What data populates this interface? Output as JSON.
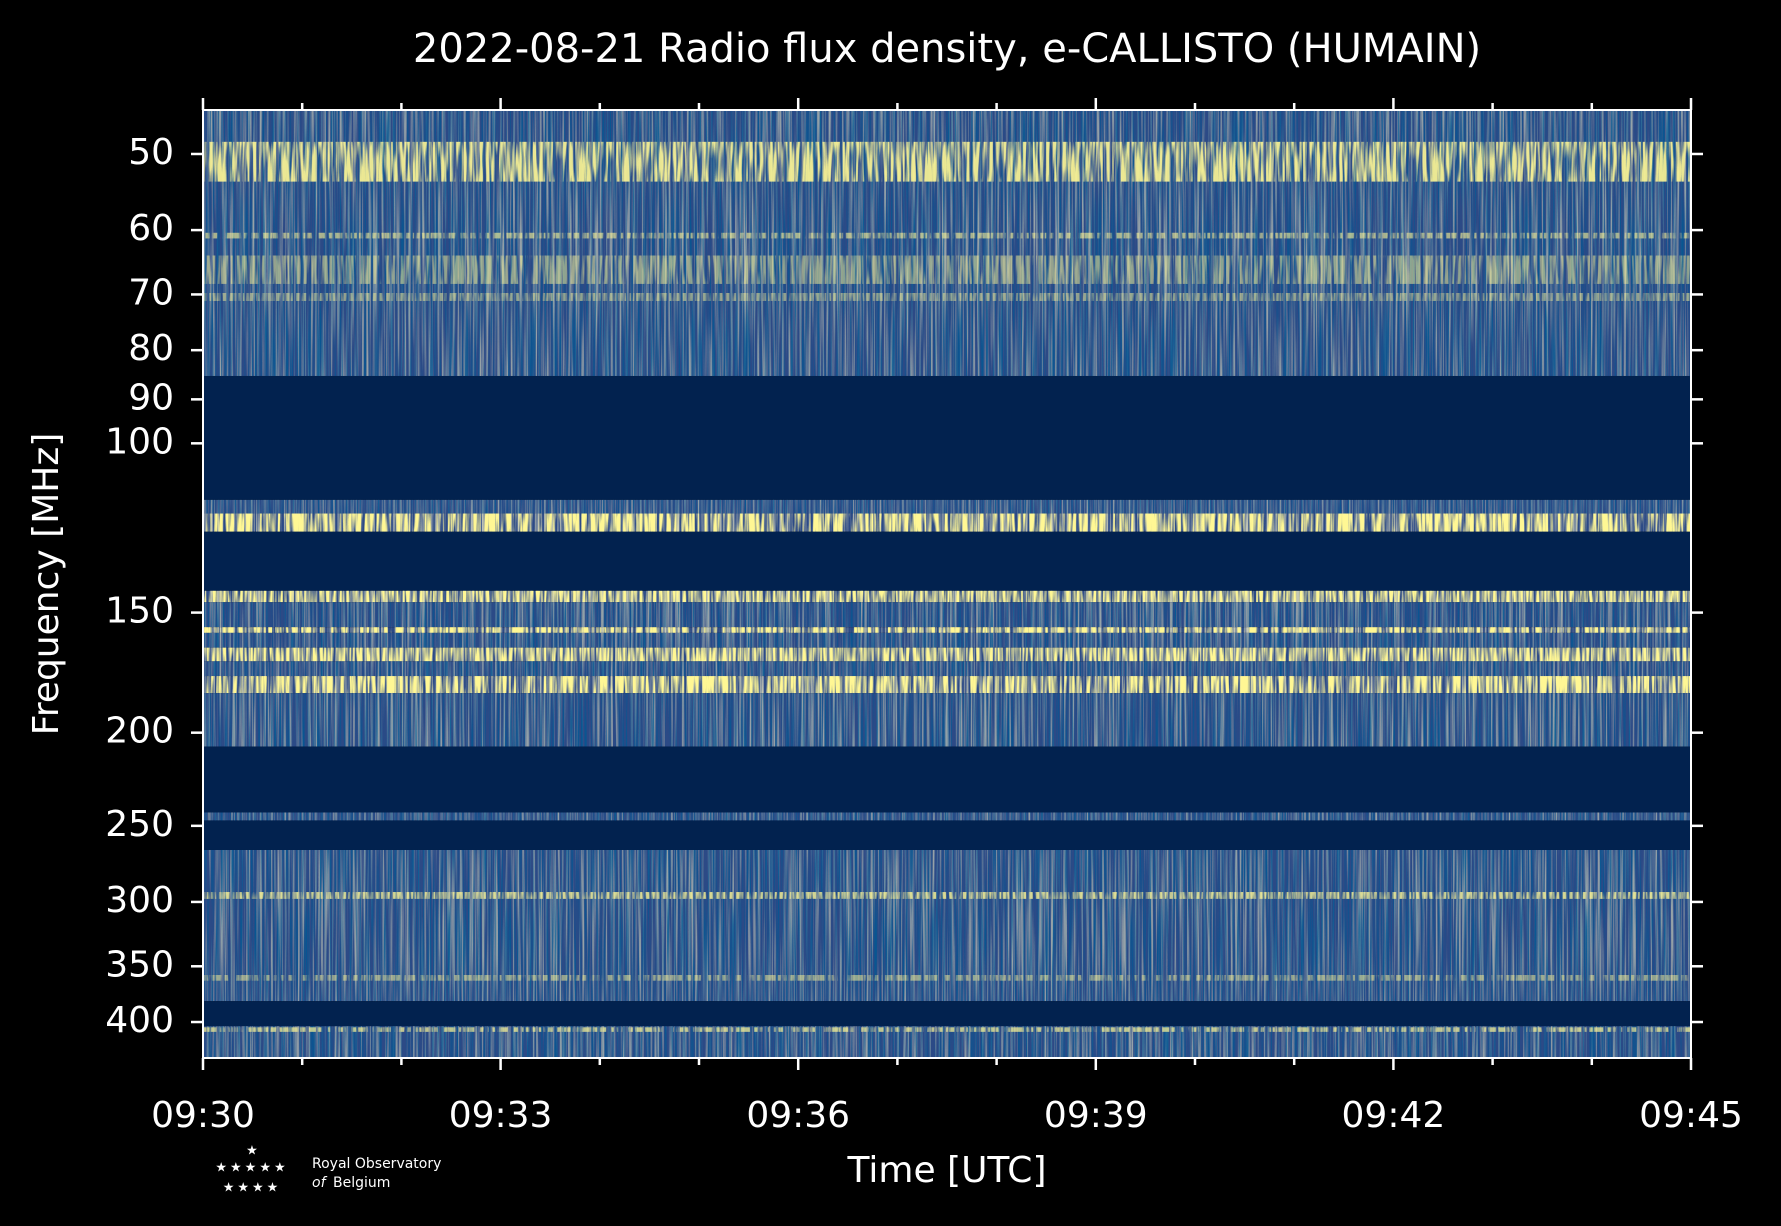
{
  "chart_data": {
    "type": "spectrogram",
    "title": "2022-08-21 Radio flux density, e-CALLISTO (HUMAIN)",
    "xlabel": "Time [UTC]",
    "ylabel": "Frequency [MHz]",
    "xlim": [
      "09:30",
      "09:45"
    ],
    "xticks": [
      "09:30",
      "09:33",
      "09:36",
      "09:39",
      "09:42",
      "09:45"
    ],
    "ylim": [
      45,
      436
    ],
    "yscale": "log",
    "yinverted": true,
    "yticks": [
      50,
      60,
      70,
      80,
      90,
      100,
      150,
      200,
      250,
      300,
      350,
      400
    ]
  },
  "logo": {
    "line1": "Royal Observatory",
    "of": "of",
    "line2": "Belgium"
  }
}
